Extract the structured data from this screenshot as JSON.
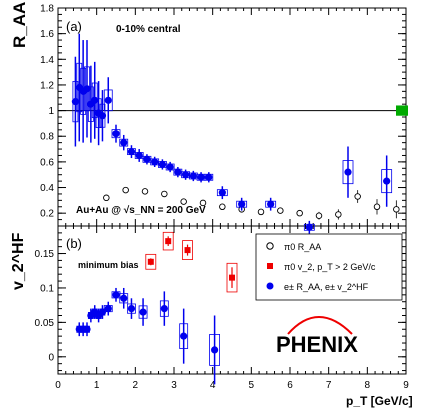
{
  "colors": {
    "electron": "#0000ee",
    "pi0_v2": "#ee0000",
    "pi0_raa": "#000000",
    "norm_box": "#00aa00"
  },
  "chart_data": [
    {
      "type": "scatter",
      "panel_label": "(a)",
      "ylabel": "R_AA",
      "centrality": "0-10% central",
      "system": "Au+Au @ √s_NN = 200 GeV",
      "xlim": [
        0,
        9
      ],
      "ylim": [
        0.1,
        1.8
      ],
      "yticks": [
        "0.2",
        "0.4",
        "0.6",
        "0.8",
        "1",
        "1.2",
        "1.4",
        "1.6",
        "1.8"
      ],
      "reference_line": 1,
      "series": [
        {
          "name": "e± R_AA",
          "x": [
            0.45,
            0.55,
            0.65,
            0.75,
            0.85,
            0.95,
            1.05,
            1.15,
            1.3,
            1.5,
            1.7,
            1.9,
            2.1,
            2.3,
            2.5,
            2.7,
            2.9,
            3.1,
            3.3,
            3.5,
            3.7,
            3.9,
            4.25,
            4.75,
            5.5,
            6.5,
            7.5,
            8.5
          ],
          "y": [
            1.07,
            1.18,
            1.15,
            1.17,
            1.05,
            1.08,
            0.98,
            0.96,
            1.08,
            0.82,
            0.75,
            0.68,
            0.65,
            0.62,
            0.6,
            0.58,
            0.56,
            0.52,
            0.5,
            0.49,
            0.48,
            0.48,
            0.36,
            0.27,
            0.27,
            0.09,
            0.52,
            0.45
          ],
          "yerr": [
            0.35,
            0.42,
            0.4,
            0.38,
            0.3,
            0.3,
            0.25,
            0.2,
            0.18,
            0.07,
            0.06,
            0.05,
            0.05,
            0.04,
            0.04,
            0.04,
            0.04,
            0.04,
            0.04,
            0.04,
            0.04,
            0.04,
            0.05,
            0.05,
            0.05,
            0.05,
            0.2,
            0.2
          ]
        },
        {
          "name": "π0 R_AA",
          "x": [
            1.25,
            1.75,
            2.25,
            2.75,
            3.25,
            3.75,
            4.25,
            4.75,
            5.25,
            5.75,
            6.25,
            6.75,
            7.25,
            7.75,
            8.25,
            8.75
          ],
          "y": [
            0.32,
            0.38,
            0.37,
            0.35,
            0.29,
            0.28,
            0.25,
            0.23,
            0.21,
            0.22,
            0.2,
            0.18,
            0.19,
            0.33,
            0.25,
            0.23
          ],
          "yerr": [
            0.02,
            0.02,
            0.02,
            0.02,
            0.02,
            0.02,
            0.02,
            0.02,
            0.02,
            0.02,
            0.02,
            0.03,
            0.04,
            0.05,
            0.06,
            0.07
          ]
        }
      ]
    },
    {
      "type": "scatter",
      "panel_label": "(b)",
      "ylabel": "v_2^HF",
      "annotation": "minimum bias",
      "xlabel": "p_T [GeV/c]",
      "xlim": [
        0,
        9
      ],
      "ylim": [
        -0.025,
        0.19
      ],
      "xticks": [
        "0",
        "1",
        "2",
        "3",
        "4",
        "5",
        "6",
        "7",
        "8",
        "9"
      ],
      "yticks": [
        "0",
        "0.05",
        "0.1",
        "0.15"
      ],
      "legend": [
        "π0 R_AA",
        "π0 v_2, p_T > 2 GeV/c",
        "e± R_AA, e± v_2^HF"
      ],
      "logo": "PHENIX",
      "series": [
        {
          "name": "e± v_2^HF",
          "x": [
            0.55,
            0.65,
            0.75,
            0.85,
            0.95,
            1.05,
            1.15,
            1.3,
            1.5,
            1.7,
            1.9,
            2.2,
            2.75,
            3.25,
            4.05
          ],
          "y": [
            0.04,
            0.04,
            0.04,
            0.06,
            0.065,
            0.06,
            0.065,
            0.07,
            0.09,
            0.085,
            0.07,
            0.065,
            0.07,
            0.03,
            0.01
          ],
          "yerr": [
            0.01,
            0.01,
            0.01,
            0.01,
            0.01,
            0.01,
            0.01,
            0.01,
            0.01,
            0.015,
            0.015,
            0.02,
            0.025,
            0.04,
            0.05
          ]
        },
        {
          "name": "π0 v_2",
          "x": [
            2.4,
            2.85,
            3.35,
            4.5
          ],
          "y": [
            0.138,
            0.168,
            0.155,
            0.115
          ],
          "yerr": [
            0.005,
            0.007,
            0.008,
            0.015
          ]
        }
      ]
    }
  ]
}
